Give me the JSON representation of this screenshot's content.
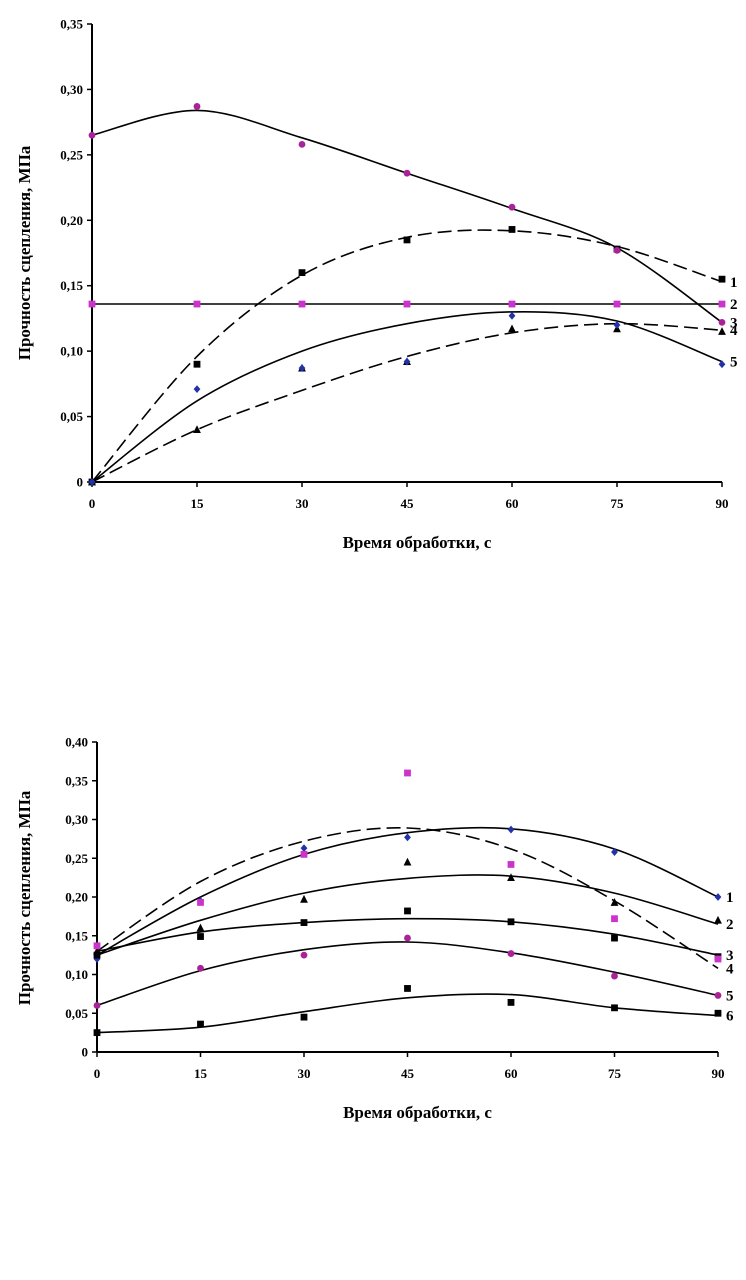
{
  "chart_data": [
    {
      "type": "line",
      "title": "",
      "xlabel": "Время обработки, с",
      "ylabel": "Прочность сцепления, МПа",
      "x": [
        0,
        15,
        30,
        45,
        60,
        75,
        90
      ],
      "xtick_labels": [
        "0",
        "15",
        "30",
        "45",
        "60",
        "75",
        "90"
      ],
      "ytick_labels": [
        "0",
        "0,05",
        "0,10",
        "0,15",
        "0,20",
        "0,25",
        "0,30",
        "0,35"
      ],
      "ytick_values": [
        0,
        0.05,
        0.1,
        0.15,
        0.2,
        0.25,
        0.3,
        0.35
      ],
      "xlim": [
        0,
        90
      ],
      "ylim": [
        0,
        0.35
      ],
      "grid": false,
      "series": [
        {
          "name": "1",
          "marker": "square",
          "color": "#000000",
          "line": "dashed",
          "values": [
            0.0,
            0.09,
            0.16,
            0.185,
            0.193,
            0.178,
            0.155
          ],
          "fit": [
            0.0,
            0.096,
            0.158,
            0.187,
            0.192,
            0.18,
            0.153
          ]
        },
        {
          "name": "2",
          "marker": "square",
          "color": "#cc33cc",
          "line": "solid",
          "values": [
            0.136,
            0.136,
            0.136,
            0.136,
            0.136,
            0.136,
            0.136
          ],
          "fit": [
            0.136,
            0.136,
            0.136,
            0.136,
            0.136,
            0.136,
            0.136
          ]
        },
        {
          "name": "3",
          "marker": "circle",
          "color": "#aa2299",
          "line": "solid",
          "values": [
            0.265,
            0.287,
            0.258,
            0.236,
            0.21,
            0.177,
            0.122
          ],
          "fit": [
            0.265,
            0.284,
            0.263,
            0.236,
            0.209,
            0.179,
            0.122
          ]
        },
        {
          "name": "4",
          "marker": "triangle",
          "color": "#000000",
          "line": "dashed",
          "values": [
            0.0,
            0.04,
            0.087,
            0.092,
            0.117,
            0.117,
            0.115
          ],
          "fit": [
            0.0,
            0.04,
            0.07,
            0.096,
            0.114,
            0.121,
            0.116
          ]
        },
        {
          "name": "5",
          "marker": "diamond",
          "color": "#2233aa",
          "line": "solid",
          "values": [
            0.0,
            0.071,
            0.087,
            0.092,
            0.127,
            0.12,
            0.09
          ],
          "fit": [
            0.0,
            0.062,
            0.1,
            0.121,
            0.13,
            0.123,
            0.092
          ]
        }
      ]
    },
    {
      "type": "line",
      "title": "",
      "xlabel": "Время обработки, с",
      "ylabel": "Прочность сцепления, МПа",
      "x": [
        0,
        15,
        30,
        45,
        60,
        75,
        90
      ],
      "xtick_labels": [
        "0",
        "15",
        "30",
        "45",
        "60",
        "75",
        "90"
      ],
      "ytick_labels": [
        "0",
        "0,05",
        "0,10",
        "0,15",
        "0,20",
        "0,25",
        "0,30",
        "0,35",
        "0,40"
      ],
      "ytick_values": [
        0,
        0.05,
        0.1,
        0.15,
        0.2,
        0.25,
        0.3,
        0.35,
        0.4
      ],
      "xlim": [
        0,
        90
      ],
      "ylim": [
        0,
        0.4
      ],
      "grid": false,
      "series": [
        {
          "name": "1",
          "marker": "diamond",
          "color": "#2233aa",
          "line": "solid",
          "values": [
            0.12,
            0.195,
            0.263,
            0.277,
            0.287,
            0.258,
            0.2
          ],
          "fit": [
            0.125,
            0.2,
            0.255,
            0.283,
            0.288,
            0.262,
            0.2
          ]
        },
        {
          "name": "2",
          "marker": "triangle",
          "color": "#000000",
          "line": "solid",
          "values": [
            0.13,
            0.16,
            0.197,
            0.245,
            0.225,
            0.193,
            0.17
          ],
          "fit": [
            0.125,
            0.17,
            0.205,
            0.224,
            0.227,
            0.205,
            0.165
          ]
        },
        {
          "name": "3",
          "marker": "square",
          "color": "#000000",
          "line": "solid",
          "values": [
            0.125,
            0.149,
            0.167,
            0.182,
            0.168,
            0.147,
            0.123
          ],
          "fit": [
            0.13,
            0.155,
            0.167,
            0.172,
            0.168,
            0.152,
            0.125
          ]
        },
        {
          "name": "4",
          "marker": "square",
          "color": "#cc33cc",
          "line": "dashed",
          "values": [
            0.137,
            0.193,
            0.255,
            0.36,
            0.242,
            0.172,
            0.12
          ],
          "fit": [
            0.13,
            0.22,
            0.272,
            0.289,
            0.262,
            0.195,
            0.108
          ]
        },
        {
          "name": "5",
          "marker": "circle",
          "color": "#aa2299",
          "line": "solid",
          "values": [
            0.06,
            0.108,
            0.125,
            0.147,
            0.127,
            0.098,
            0.073
          ],
          "fit": [
            0.06,
            0.105,
            0.132,
            0.142,
            0.128,
            0.103,
            0.073
          ]
        },
        {
          "name": "6",
          "marker": "square",
          "color": "#000000",
          "line": "solid",
          "values": [
            0.025,
            0.036,
            0.045,
            0.082,
            0.064,
            0.057,
            0.05
          ],
          "fit": [
            0.025,
            0.032,
            0.052,
            0.07,
            0.074,
            0.057,
            0.047
          ]
        }
      ]
    }
  ]
}
